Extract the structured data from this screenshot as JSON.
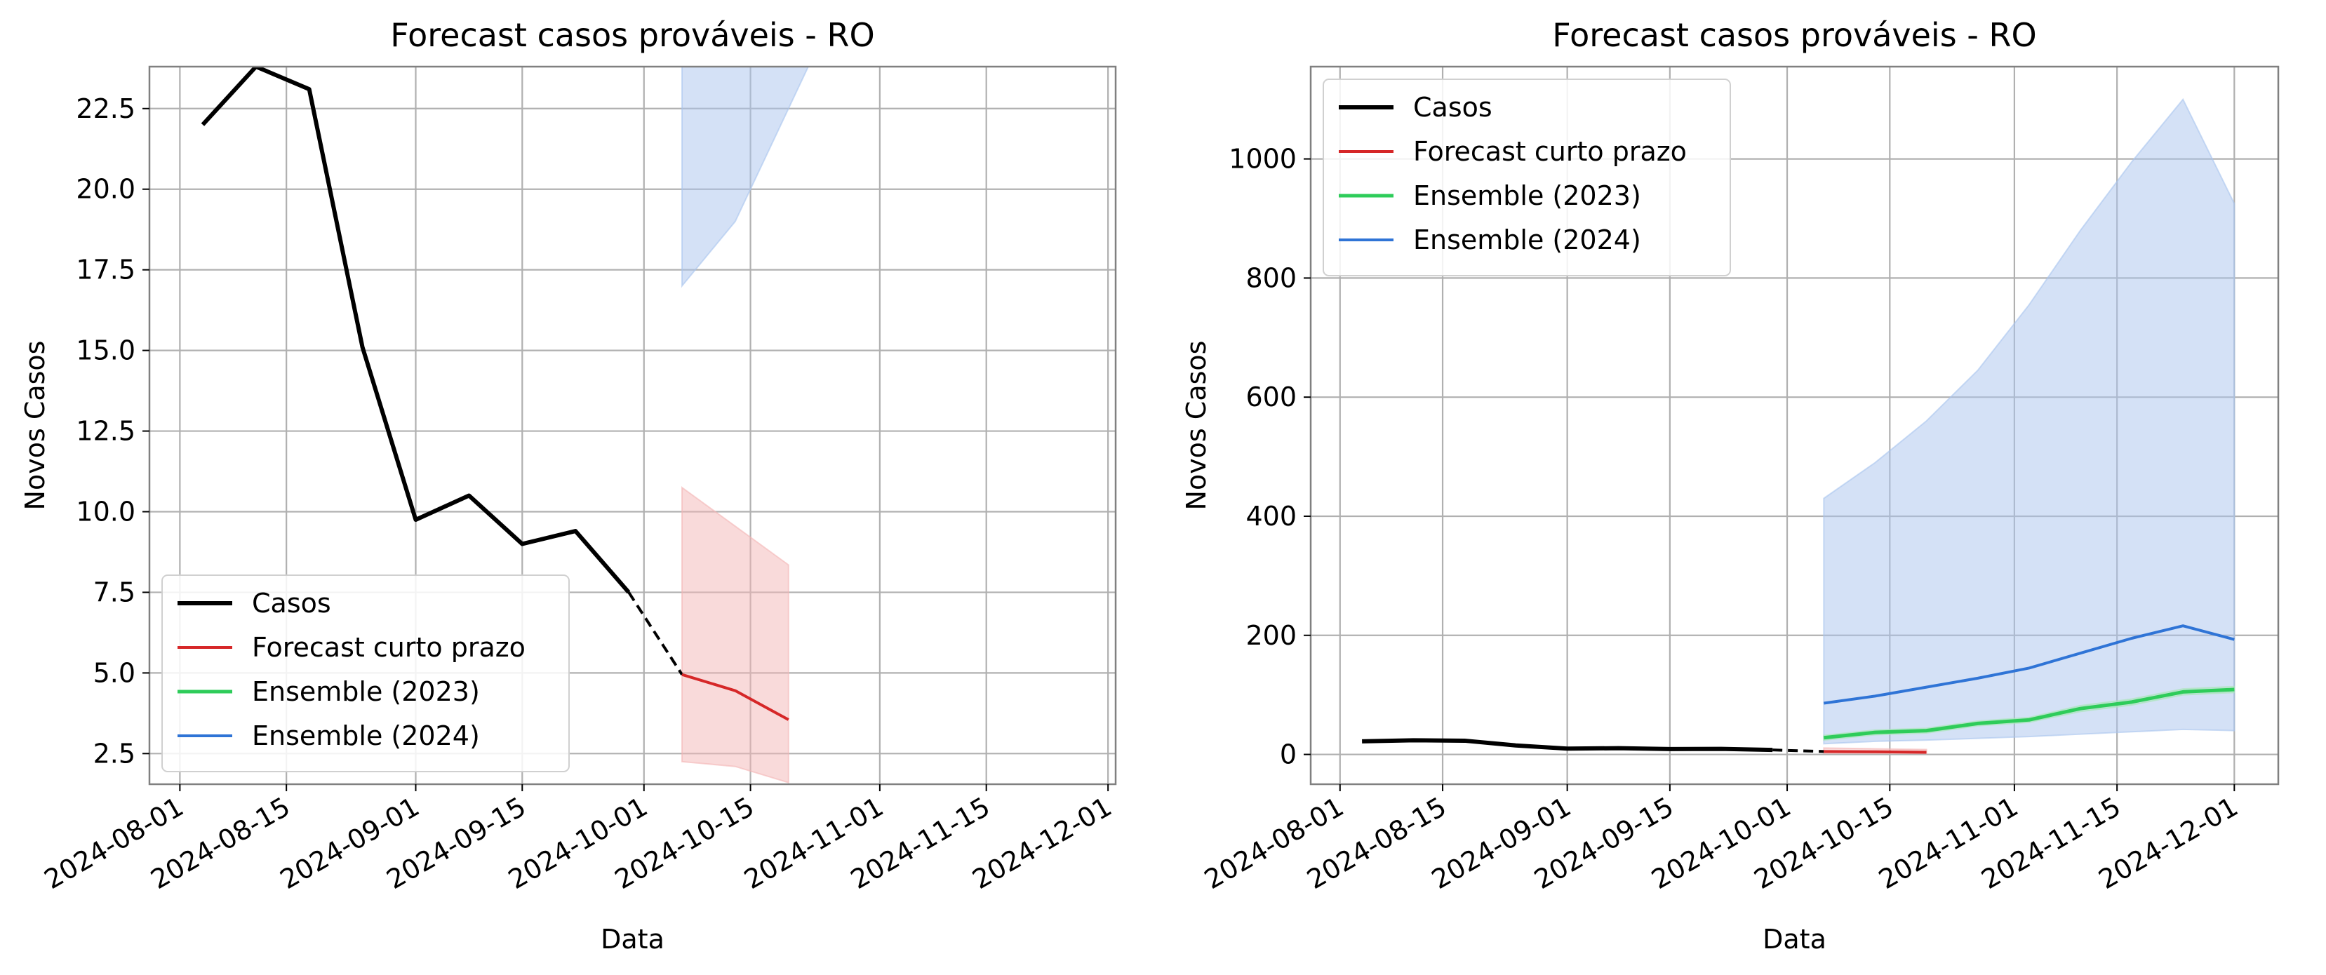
{
  "colors": {
    "casos": "#000000",
    "forecast": "#d62728",
    "ens2023": "#2ecc5a",
    "ens2024": "#2f74d6",
    "forecast_band": "#f4b6b6",
    "ens2024_band": "#a9c4ee",
    "ens2023_band": "#a8e6b8",
    "grid": "#b0b0b0"
  },
  "chart_data": [
    {
      "type": "line",
      "title": "Forecast casos prováveis - RO",
      "xlabel": "Data",
      "ylabel": "Novos Casos",
      "x_is_date": true,
      "xlim": [
        "2024-07-28",
        "2024-12-02"
      ],
      "ylim": [
        1.55,
        23.8
      ],
      "xticks": [
        "2024-08-01",
        "2024-08-15",
        "2024-09-01",
        "2024-09-15",
        "2024-10-01",
        "2024-10-15",
        "2024-11-01",
        "2024-11-15",
        "2024-12-01"
      ],
      "yticks": [
        2.5,
        5.0,
        7.5,
        10.0,
        12.5,
        15.0,
        17.5,
        20.0,
        22.5
      ],
      "ytick_labels": [
        "2.5",
        "5.0",
        "7.5",
        "10.0",
        "12.5",
        "15.0",
        "17.5",
        "20.0",
        "22.5"
      ],
      "grid": true,
      "legend_position": "lower-left",
      "legend": [
        "Casos",
        "Forecast curto prazo",
        "Ensemble (2023)",
        "Ensemble (2024)"
      ],
      "series": [
        {
          "name": "Casos",
          "color_key": "casos",
          "style": "solid",
          "width": 6,
          "x": [
            "2024-08-04",
            "2024-08-11",
            "2024-08-18",
            "2024-08-25",
            "2024-09-01",
            "2024-09-08",
            "2024-09-15",
            "2024-09-22",
            "2024-09-29"
          ],
          "y": [
            22.0,
            23.8,
            23.1,
            15.1,
            9.75,
            10.5,
            9.0,
            9.4,
            7.5
          ]
        },
        {
          "name": "",
          "color_key": "casos",
          "style": "dashed",
          "width": 4,
          "x": [
            "2024-09-29",
            "2024-10-06"
          ],
          "y": [
            7.5,
            4.95
          ]
        },
        {
          "name": "Forecast curto prazo",
          "color_key": "forecast",
          "style": "solid",
          "width": 4,
          "x": [
            "2024-10-06",
            "2024-10-13",
            "2024-10-20"
          ],
          "y": [
            4.95,
            4.45,
            3.55
          ]
        }
      ],
      "bands": [
        {
          "color_key": "forecast_band",
          "x": [
            "2024-10-06",
            "2024-10-13",
            "2024-10-20"
          ],
          "lower": [
            2.25,
            2.1,
            1.6
          ],
          "upper": [
            10.75,
            9.55,
            8.35
          ]
        },
        {
          "color_key": "ens2024_band",
          "x": [
            "2024-10-06",
            "2024-10-13",
            "2024-10-20",
            "2024-10-27"
          ],
          "lower": [
            17.0,
            19.0,
            22.5,
            26.0
          ],
          "upper": [
            25.0,
            27.0,
            30.0,
            33.0
          ]
        }
      ]
    },
    {
      "type": "line",
      "title": "Forecast casos prováveis - RO",
      "xlabel": "Data",
      "ylabel": "Novos Casos",
      "x_is_date": true,
      "xlim": [
        "2024-07-28",
        "2024-12-07"
      ],
      "ylim": [
        -50,
        1155
      ],
      "xticks": [
        "2024-08-01",
        "2024-08-15",
        "2024-09-01",
        "2024-09-15",
        "2024-10-01",
        "2024-10-15",
        "2024-11-01",
        "2024-11-15",
        "2024-12-01"
      ],
      "yticks": [
        0,
        200,
        400,
        600,
        800,
        1000
      ],
      "ytick_labels": [
        "0",
        "200",
        "400",
        "600",
        "800",
        "1000"
      ],
      "grid": true,
      "legend_position": "upper-left",
      "legend": [
        "Casos",
        "Forecast curto prazo",
        "Ensemble (2023)",
        "Ensemble (2024)"
      ],
      "series": [
        {
          "name": "Casos",
          "color_key": "casos",
          "style": "solid",
          "width": 6,
          "x": [
            "2024-08-04",
            "2024-08-11",
            "2024-08-18",
            "2024-08-25",
            "2024-09-01",
            "2024-09-08",
            "2024-09-15",
            "2024-09-22",
            "2024-09-29"
          ],
          "y": [
            22.0,
            23.8,
            23.1,
            15.1,
            9.75,
            10.5,
            9.0,
            9.4,
            7.5
          ]
        },
        {
          "name": "",
          "color_key": "casos",
          "style": "dashed",
          "width": 4,
          "x": [
            "2024-09-29",
            "2024-10-06"
          ],
          "y": [
            7.5,
            4.95
          ]
        },
        {
          "name": "Forecast curto prazo",
          "color_key": "forecast",
          "style": "solid",
          "width": 4,
          "x": [
            "2024-10-06",
            "2024-10-13",
            "2024-10-20"
          ],
          "y": [
            4.95,
            4.45,
            3.55
          ]
        },
        {
          "name": "Ensemble (2023)",
          "color_key": "ens2023",
          "style": "solid",
          "width": 5,
          "x": [
            "2024-10-06",
            "2024-10-13",
            "2024-10-20",
            "2024-10-27",
            "2024-11-03",
            "2024-11-10",
            "2024-11-17",
            "2024-11-24",
            "2024-12-01"
          ],
          "y": [
            28,
            37,
            40,
            52,
            58,
            77,
            88,
            105,
            109
          ]
        },
        {
          "name": "Ensemble (2024)",
          "color_key": "ens2024",
          "style": "solid",
          "width": 4,
          "x": [
            "2024-10-06",
            "2024-10-13",
            "2024-10-20",
            "2024-10-27",
            "2024-11-03",
            "2024-11-10",
            "2024-11-17",
            "2024-11-24",
            "2024-12-01"
          ],
          "y": [
            86,
            98,
            113,
            128,
            145,
            170,
            195,
            216,
            193
          ]
        }
      ],
      "bands": [
        {
          "color_key": "ens2024_band",
          "x": [
            "2024-10-06",
            "2024-10-13",
            "2024-10-20",
            "2024-10-27",
            "2024-11-03",
            "2024-11-10",
            "2024-11-17",
            "2024-11-24",
            "2024-12-01"
          ],
          "lower": [
            18,
            22,
            24,
            27,
            30,
            34,
            38,
            42,
            40
          ],
          "upper": [
            430,
            490,
            560,
            645,
            755,
            880,
            995,
            1100,
            925
          ]
        },
        {
          "color_key": "ens2023_band",
          "x": [
            "2024-10-06",
            "2024-10-13",
            "2024-10-20",
            "2024-10-27",
            "2024-11-03",
            "2024-11-10",
            "2024-11-17",
            "2024-11-24",
            "2024-12-01"
          ],
          "lower": [
            24,
            33,
            36,
            48,
            54,
            72,
            83,
            100,
            104
          ],
          "upper": [
            32,
            41,
            44,
            56,
            62,
            82,
            93,
            110,
            114
          ]
        },
        {
          "color_key": "forecast_band",
          "x": [
            "2024-10-06",
            "2024-10-13",
            "2024-10-20"
          ],
          "lower": [
            2.25,
            2.1,
            1.6
          ],
          "upper": [
            10.75,
            9.55,
            8.35
          ]
        }
      ]
    }
  ]
}
